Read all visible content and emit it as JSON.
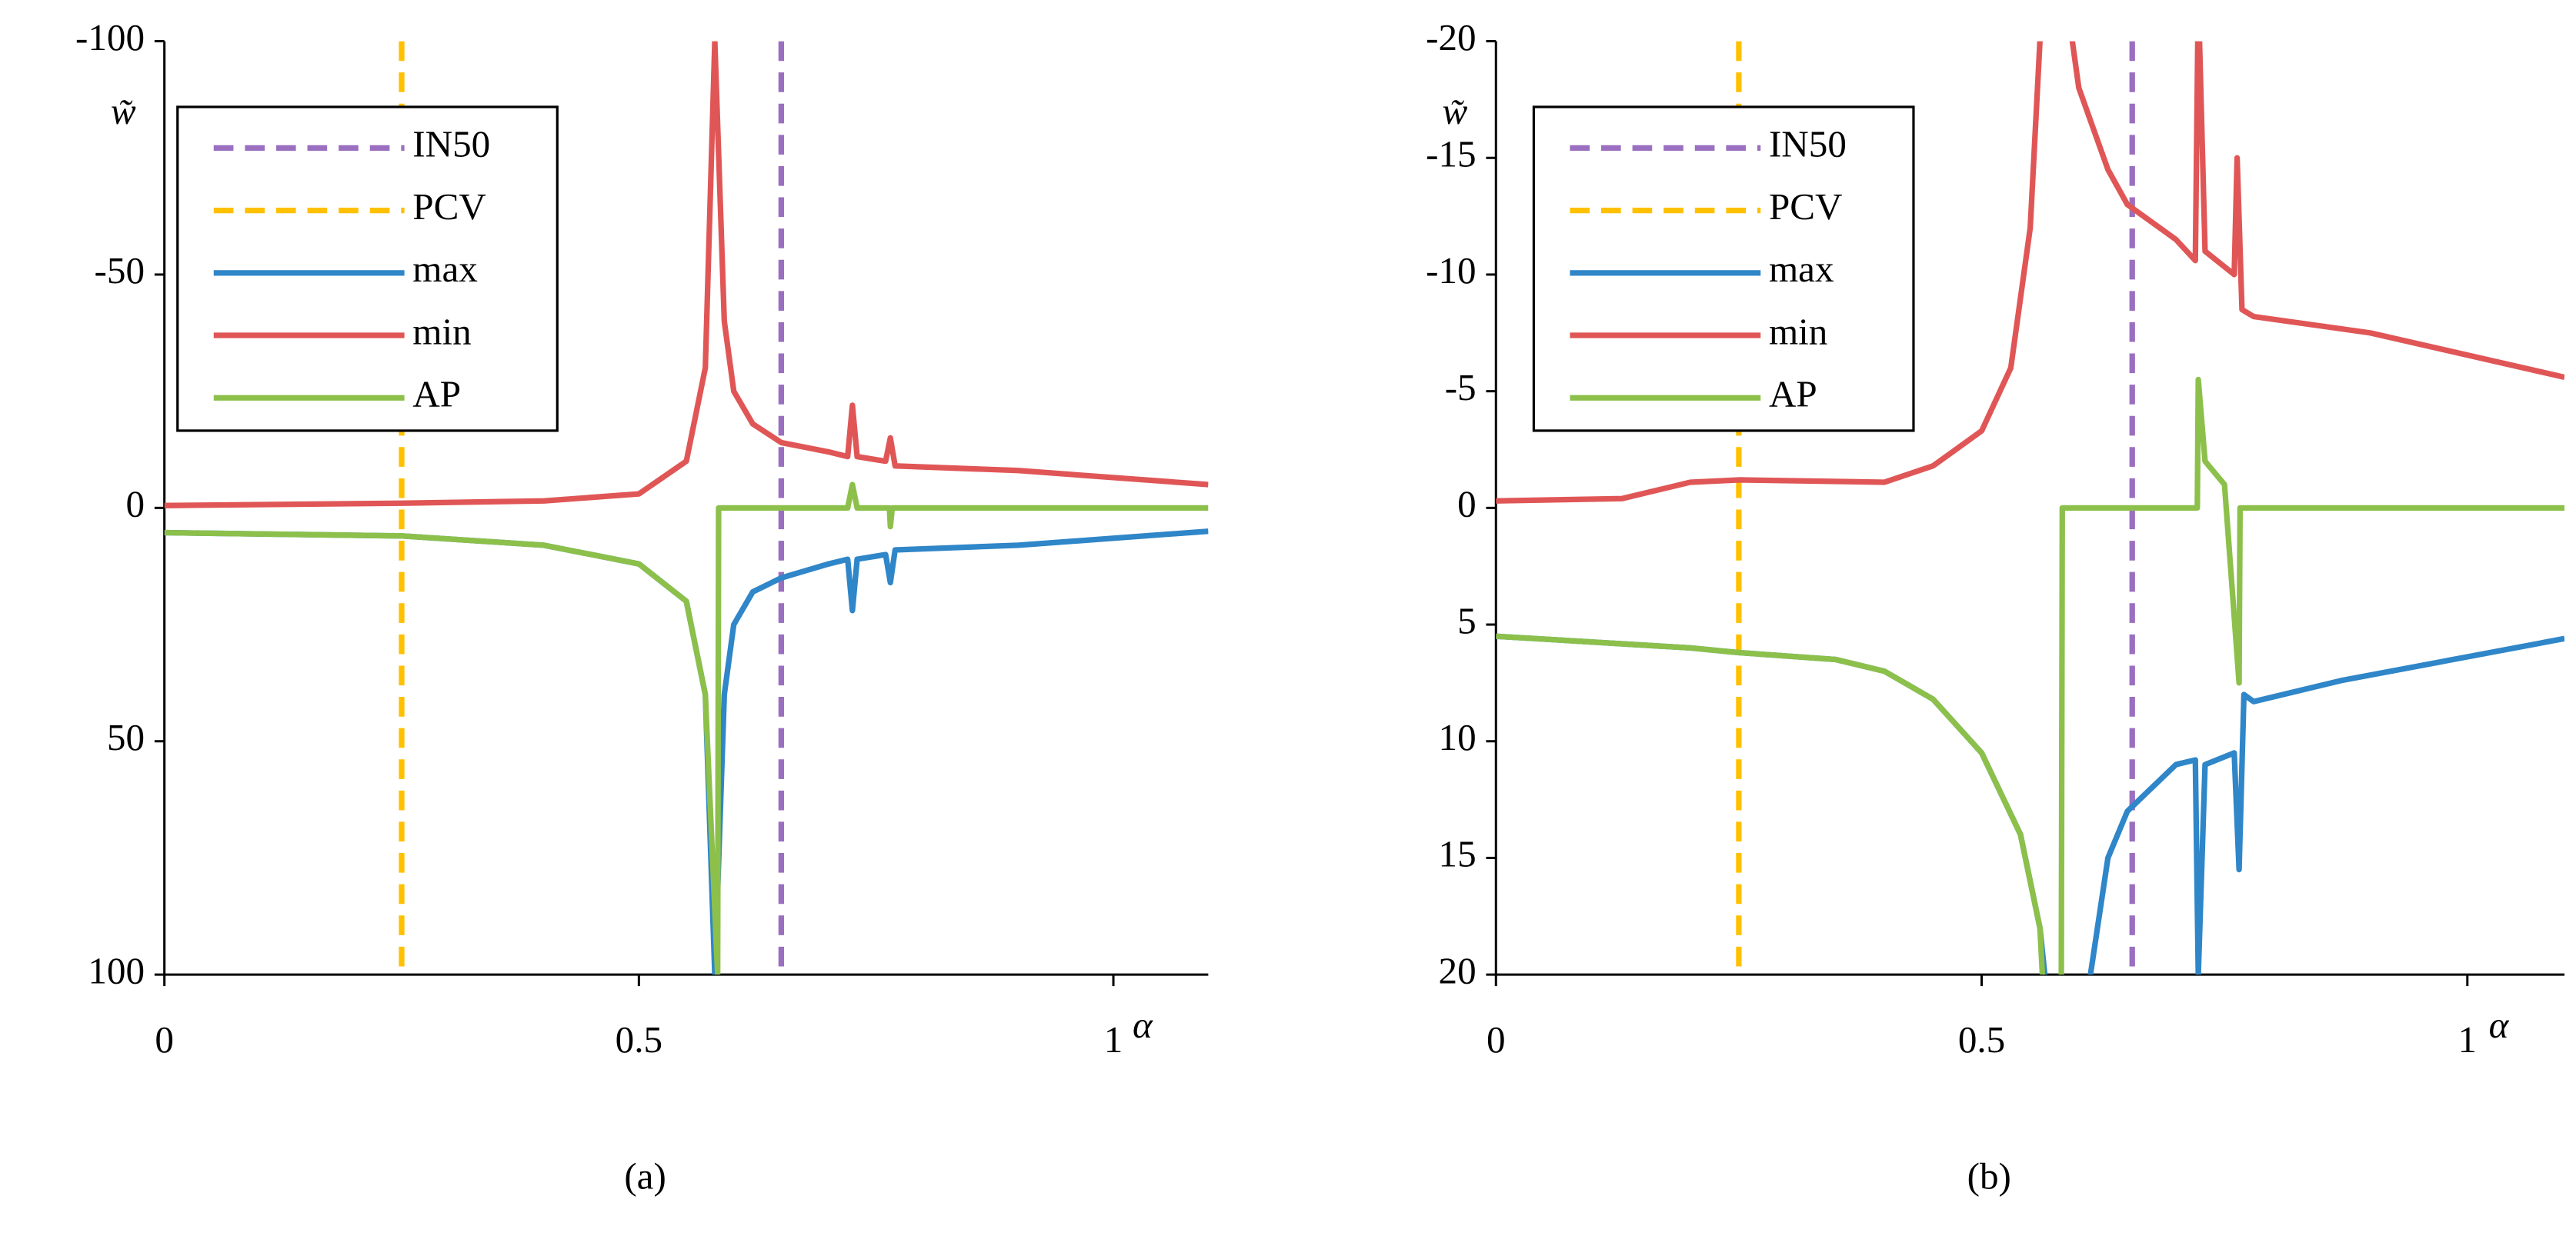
{
  "chart_data": [
    {
      "type": "line",
      "caption": "(a)",
      "ylabel": "w̃",
      "xlabel": "α",
      "xlim": [
        0,
        1.1
      ],
      "xticks": [
        0,
        0.5,
        1
      ],
      "ylim": [
        100,
        -100
      ],
      "yticks": [
        -100,
        -50,
        0,
        50,
        100
      ],
      "legend": "top-left",
      "series": [
        {
          "name": "IN50",
          "color": "#9a6fc0",
          "dash": true,
          "x": [
            0.65,
            0.65
          ],
          "values": [
            -100,
            100
          ]
        },
        {
          "name": "PCV",
          "color": "#ffc000",
          "dash": true,
          "x": [
            0.25,
            0.25
          ],
          "values": [
            -100,
            100
          ]
        },
        {
          "name": "max",
          "color": "#2f86c8",
          "dash": false,
          "x": [
            0,
            0.25,
            0.4,
            0.5,
            0.55,
            0.57,
            0.58,
            0.59,
            0.6,
            0.62,
            0.65,
            0.7,
            0.72,
            0.725,
            0.73,
            0.76,
            0.765,
            0.77,
            0.9,
            1.1
          ],
          "values": [
            5.3,
            6,
            8,
            12,
            20,
            40,
            100,
            40,
            25,
            18,
            15,
            12,
            11,
            22,
            11,
            10,
            16,
            9,
            8,
            5
          ]
        },
        {
          "name": "min",
          "color": "#e05656",
          "dash": false,
          "x": [
            0,
            0.25,
            0.4,
            0.5,
            0.55,
            0.57,
            0.58,
            0.59,
            0.6,
            0.62,
            0.65,
            0.7,
            0.72,
            0.725,
            0.73,
            0.76,
            0.765,
            0.77,
            0.9,
            1.1
          ],
          "values": [
            -0.5,
            -1,
            -1.5,
            -3,
            -10,
            -30,
            -100,
            -40,
            -25,
            -18,
            -14,
            -12,
            -11,
            -22,
            -11,
            -10,
            -15,
            -9,
            -8,
            -5
          ]
        },
        {
          "name": "AP",
          "color": "#8cc04b",
          "dash": false,
          "x": [
            0,
            0.25,
            0.4,
            0.5,
            0.55,
            0.57,
            0.583,
            0.584,
            0.72,
            0.725,
            0.73,
            0.764,
            0.765,
            0.767,
            1.1
          ],
          "values": [
            5.3,
            6,
            8,
            12,
            20,
            40,
            100,
            0,
            0,
            -5,
            0,
            0,
            4,
            0,
            0
          ]
        }
      ]
    },
    {
      "type": "line",
      "caption": "(b)",
      "ylabel": "w̃",
      "xlabel": "α",
      "xlim": [
        0,
        1.1
      ],
      "xticks": [
        0,
        0.5,
        1
      ],
      "ylim": [
        20,
        -20
      ],
      "yticks": [
        -20,
        -15,
        -10,
        -5,
        0,
        5,
        10,
        15,
        20
      ],
      "legend": "top-left",
      "series": [
        {
          "name": "IN50",
          "color": "#9a6fc0",
          "dash": true,
          "x": [
            0.655,
            0.655
          ],
          "values": [
            -20,
            20
          ]
        },
        {
          "name": "PCV",
          "color": "#ffc000",
          "dash": true,
          "x": [
            0.25,
            0.25
          ],
          "values": [
            -20,
            20
          ]
        },
        {
          "name": "max",
          "color": "#2f86c8",
          "dash": false,
          "x": [
            0,
            0.2,
            0.25,
            0.35,
            0.4,
            0.45,
            0.5,
            0.54,
            0.56,
            0.57,
            0.59,
            0.612,
            0.63,
            0.65,
            0.7,
            0.72,
            0.723,
            0.73,
            0.76,
            0.765,
            0.77,
            0.78,
            0.87,
            1.1
          ],
          "values": [
            5.5,
            6,
            6.2,
            6.5,
            7,
            8.2,
            10.5,
            14,
            18,
            22,
            30,
            20,
            15,
            13,
            11,
            10.8,
            20,
            11,
            10.5,
            15.5,
            8,
            8.3,
            7.4,
            5.6
          ]
        },
        {
          "name": "min",
          "color": "#e05656",
          "dash": false,
          "x": [
            0,
            0.13,
            0.2,
            0.25,
            0.4,
            0.45,
            0.5,
            0.53,
            0.55,
            0.56,
            0.575,
            0.59,
            0.6,
            0.63,
            0.65,
            0.7,
            0.72,
            0.723,
            0.73,
            0.76,
            0.763,
            0.768,
            0.78,
            0.9,
            1.1
          ],
          "values": [
            -0.3,
            -0.4,
            -1.1,
            -1.2,
            -1.1,
            -1.8,
            -3.3,
            -6,
            -12,
            -20,
            -30,
            -21,
            -18,
            -14.5,
            -13,
            -11.5,
            -10.6,
            -22,
            -11,
            -10,
            -15,
            -8.5,
            -8.2,
            -7.5,
            -5.6
          ]
        },
        {
          "name": "AP",
          "color": "#8cc04b",
          "dash": false,
          "x": [
            0,
            0.2,
            0.25,
            0.35,
            0.4,
            0.45,
            0.5,
            0.54,
            0.56,
            0.575,
            0.582,
            0.583,
            0.722,
            0.723,
            0.73,
            0.75,
            0.765,
            0.766,
            1.1
          ],
          "values": [
            5.5,
            6,
            6.2,
            6.5,
            7,
            8.2,
            10.5,
            14,
            18,
            30,
            20,
            0,
            0,
            -5.5,
            -2,
            -1,
            7.5,
            0,
            0
          ]
        }
      ]
    }
  ]
}
